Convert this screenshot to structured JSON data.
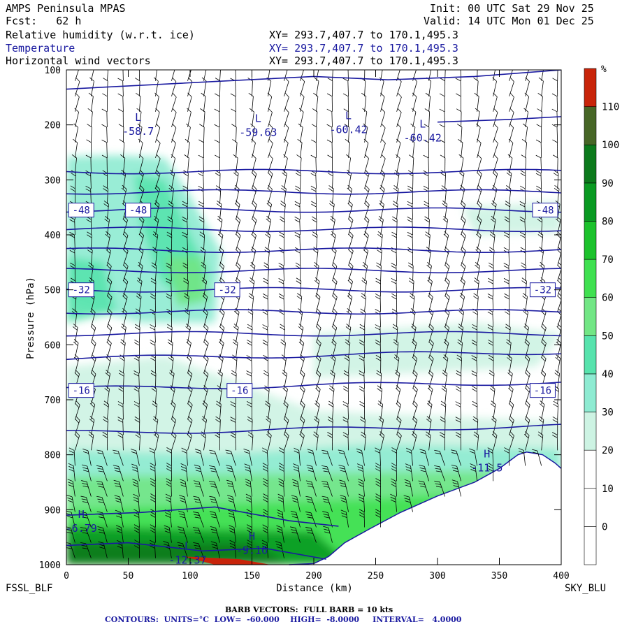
{
  "header": {
    "model": "AMPS Peninsula MPAS",
    "forecast": "Fcst:   62 h",
    "init": "Init: 00 UTC Sat 29 Nov 25",
    "valid": "Valid: 14 UTC Mon 01 Dec 25",
    "fields": [
      {
        "label": "Relative humidity (w.r.t. ice)",
        "xy": "XY= 293.7,407.7 to 170.1,495.3",
        "color": "#000000"
      },
      {
        "label": "Temperature",
        "xy": "XY= 293.7,407.7 to 170.1,495.3",
        "color": "#1a1aa0"
      },
      {
        "label": "Horizontal wind vectors",
        "xy": "XY= 293.7,407.7 to 170.1,495.3",
        "color": "#000000"
      }
    ]
  },
  "chart_data": {
    "type": "heatmap",
    "title": "",
    "xlabel": "Distance (km)",
    "ylabel": "Pressure (hPa)",
    "xlim": [
      0,
      400
    ],
    "ylim": [
      1000,
      100
    ],
    "x_ticks": [
      0,
      50,
      100,
      150,
      200,
      250,
      300,
      350,
      400
    ],
    "y_ticks": [
      100,
      200,
      300,
      400,
      500,
      600,
      700,
      800,
      900,
      1000
    ],
    "endpoint_left": "FSSL_BLF",
    "endpoint_right": "SKY_BLU",
    "rh_colorbar": {
      "unit": "%",
      "levels": [
        0,
        10,
        20,
        30,
        40,
        50,
        60,
        70,
        80,
        90,
        100,
        110
      ],
      "colors": [
        "#ffffff",
        "#ffffff",
        "#ffffff",
        "#cdf3e3",
        "#8eebd2",
        "#57e3ad",
        "#72e685",
        "#3fe050",
        "#1cc22c",
        "#0a9a22",
        "#0c7a1c",
        "#476626",
        "#c8240a"
      ]
    },
    "temperature_contours": {
      "units": "°C",
      "low": -60.0,
      "high": -8.0,
      "interval": 4.0,
      "labels": [
        {
          "text": "-48",
          "x": 12,
          "p": 355
        },
        {
          "text": "-48",
          "x": 58,
          "p": 355
        },
        {
          "text": "-48",
          "x": 387,
          "p": 355
        },
        {
          "text": "-32",
          "x": 12,
          "p": 500
        },
        {
          "text": "-32",
          "x": 130,
          "p": 500
        },
        {
          "text": "-32",
          "x": 385,
          "p": 500
        },
        {
          "text": "-16",
          "x": 12,
          "p": 683
        },
        {
          "text": "-16",
          "x": 140,
          "p": 683
        },
        {
          "text": "-16",
          "x": 385,
          "p": 683
        }
      ],
      "extrema": [
        {
          "kind": "L",
          "value": "-58.7",
          "x": 58,
          "p": 213
        },
        {
          "kind": "L",
          "value": "-59.63",
          "x": 155,
          "p": 215
        },
        {
          "kind": "L",
          "value": "-60.42",
          "x": 228,
          "p": 210
        },
        {
          "kind": "L",
          "value": "-60.42",
          "x": 288,
          "p": 225
        },
        {
          "kind": "H",
          "value": "-6.79",
          "x": 12,
          "p": 935
        },
        {
          "kind": "H",
          "value": "-9.16",
          "x": 150,
          "p": 975
        },
        {
          "kind": "H",
          "value": "-11.5",
          "x": 340,
          "p": 825
        },
        {
          "kind": "L",
          "value": "-12.37",
          "x": 98,
          "p": 993
        }
      ]
    },
    "wind_barbs": {
      "full_barb_kts": 10
    }
  },
  "footer": {
    "barb_note": "BARB VECTORS:  FULL BARB = 10 kts",
    "contours_label": "CONTOURS:  UNITS=°C  LOW=  -60.000    HIGH=  -8.0000     INTERVAL=   4.0000"
  }
}
